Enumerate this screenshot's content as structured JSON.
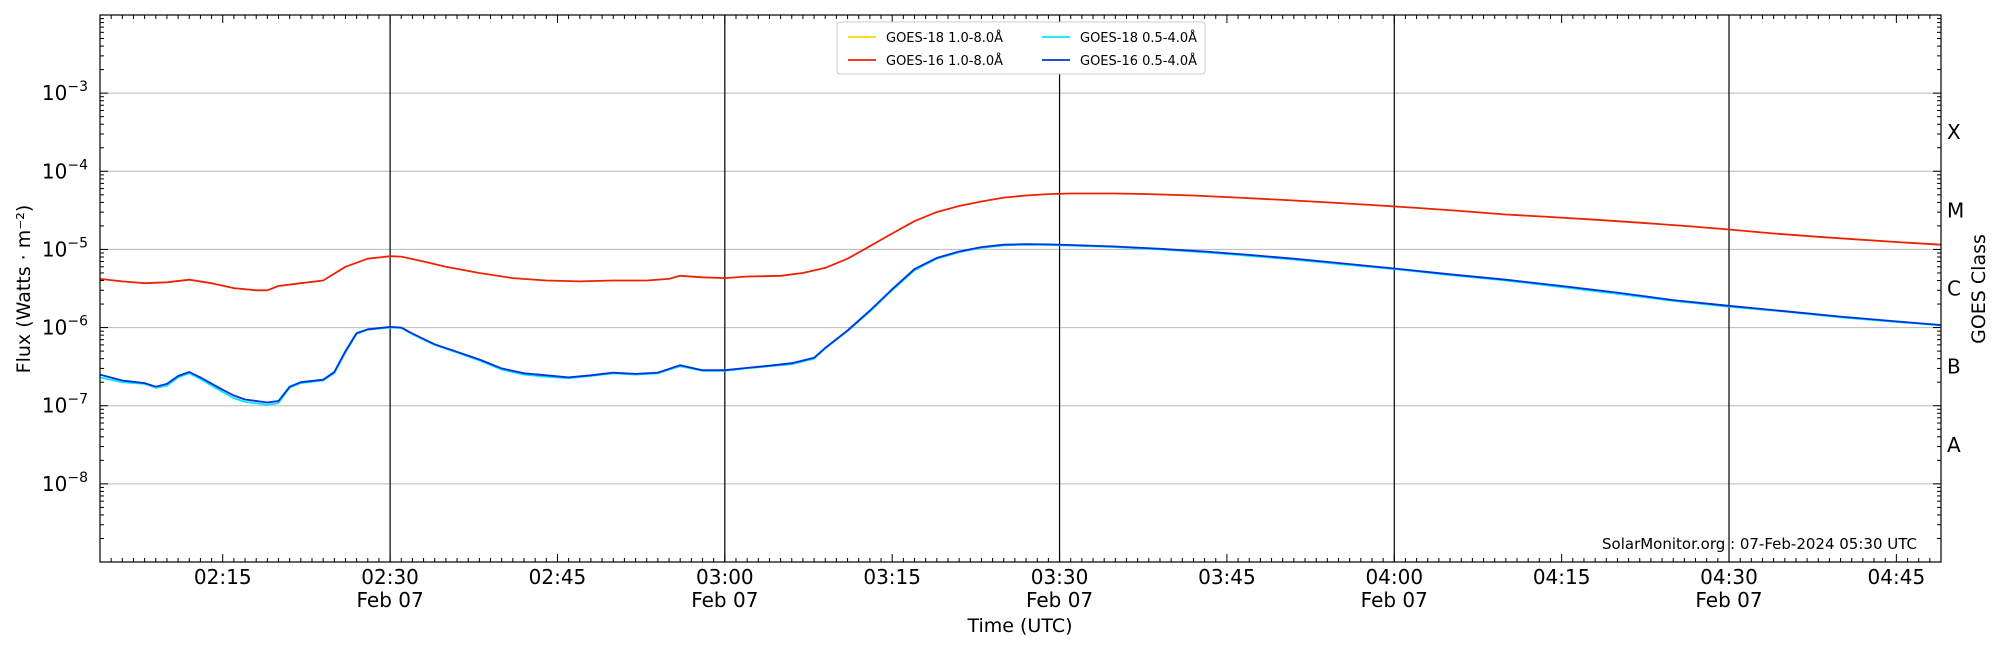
{
  "chart_data": {
    "type": "line",
    "ylabel": "Flux (Watts · m⁻²)",
    "xlabel": "Time (UTC)",
    "right_label": "GOES Class",
    "credit": "SolarMonitor.org : 07-Feb-2024 05:30 UTC",
    "y_scale": "log",
    "ylim": [
      1e-09,
      0.01
    ],
    "xlim": [
      "02:04",
      "04:49"
    ],
    "y_ticks": [
      {
        "value": 1e-08,
        "base": "10",
        "exp": "−8"
      },
      {
        "value": 1e-07,
        "base": "10",
        "exp": "−7"
      },
      {
        "value": 1e-06,
        "base": "10",
        "exp": "−6"
      },
      {
        "value": 1e-05,
        "base": "10",
        "exp": "−5"
      },
      {
        "value": 0.0001,
        "base": "10",
        "exp": "−4"
      },
      {
        "value": 0.001,
        "base": "10",
        "exp": "−3"
      }
    ],
    "x_ticks": [
      {
        "time": "02:15",
        "date": ""
      },
      {
        "time": "02:30",
        "date": "Feb 07"
      },
      {
        "time": "02:45",
        "date": ""
      },
      {
        "time": "03:00",
        "date": "Feb 07"
      },
      {
        "time": "03:15",
        "date": ""
      },
      {
        "time": "03:30",
        "date": "Feb 07"
      },
      {
        "time": "03:45",
        "date": ""
      },
      {
        "time": "04:00",
        "date": "Feb 07"
      },
      {
        "time": "04:15",
        "date": ""
      },
      {
        "time": "04:30",
        "date": "Feb 07"
      },
      {
        "time": "04:45",
        "date": ""
      }
    ],
    "vlines": [
      "02:30",
      "03:00",
      "03:30",
      "04:00",
      "04:30"
    ],
    "goes_classes": [
      {
        "label": "A",
        "value": 3.16e-08
      },
      {
        "label": "B",
        "value": 3.16e-07
      },
      {
        "label": "C",
        "value": 3.16e-06
      },
      {
        "label": "M",
        "value": 3.16e-05
      },
      {
        "label": "X",
        "value": 0.000316
      }
    ],
    "grid": true,
    "legend_position": "top-center",
    "series": [
      {
        "name": "GOES-18 1.0-8.0Å",
        "color": "#ffd700",
        "points": []
      },
      {
        "name": "GOES-16 1.0-8.0Å",
        "color": "#ee2200",
        "points": [
          [
            "02:04",
            4.2e-06
          ],
          [
            "02:06",
            3.9e-06
          ],
          [
            "02:08",
            3.7e-06
          ],
          [
            "02:10",
            3.8e-06
          ],
          [
            "02:12",
            4.1e-06
          ],
          [
            "02:14",
            3.7e-06
          ],
          [
            "02:16",
            3.2e-06
          ],
          [
            "02:18",
            3e-06
          ],
          [
            "02:19",
            3e-06
          ],
          [
            "02:20",
            3.4e-06
          ],
          [
            "02:22",
            3.7e-06
          ],
          [
            "02:24",
            4e-06
          ],
          [
            "02:26",
            6e-06
          ],
          [
            "02:28",
            7.6e-06
          ],
          [
            "02:30",
            8.2e-06
          ],
          [
            "02:31",
            8.1e-06
          ],
          [
            "02:33",
            7e-06
          ],
          [
            "02:35",
            6e-06
          ],
          [
            "02:38",
            5e-06
          ],
          [
            "02:41",
            4.3e-06
          ],
          [
            "02:44",
            4e-06
          ],
          [
            "02:47",
            3.9e-06
          ],
          [
            "02:50",
            4e-06
          ],
          [
            "02:53",
            4e-06
          ],
          [
            "02:55",
            4.2e-06
          ],
          [
            "02:56",
            4.6e-06
          ],
          [
            "02:58",
            4.4e-06
          ],
          [
            "03:00",
            4.3e-06
          ],
          [
            "03:02",
            4.5e-06
          ],
          [
            "03:05",
            4.6e-06
          ],
          [
            "03:07",
            5e-06
          ],
          [
            "03:09",
            5.8e-06
          ],
          [
            "03:11",
            7.6e-06
          ],
          [
            "03:13",
            1.1e-05
          ],
          [
            "03:15",
            1.6e-05
          ],
          [
            "03:17",
            2.3e-05
          ],
          [
            "03:19",
            3e-05
          ],
          [
            "03:21",
            3.6e-05
          ],
          [
            "03:23",
            4.1e-05
          ],
          [
            "03:25",
            4.6e-05
          ],
          [
            "03:27",
            4.9e-05
          ],
          [
            "03:29",
            5.1e-05
          ],
          [
            "03:31",
            5.2e-05
          ],
          [
            "03:33",
            5.2e-05
          ],
          [
            "03:35",
            5.2e-05
          ],
          [
            "03:38",
            5.1e-05
          ],
          [
            "03:42",
            4.9e-05
          ],
          [
            "03:46",
            4.6e-05
          ],
          [
            "03:50",
            4.3e-05
          ],
          [
            "03:54",
            4e-05
          ],
          [
            "03:58",
            3.7e-05
          ],
          [
            "04:02",
            3.4e-05
          ],
          [
            "04:06",
            3.1e-05
          ],
          [
            "04:10",
            2.8e-05
          ],
          [
            "04:14",
            2.6e-05
          ],
          [
            "04:18",
            2.4e-05
          ],
          [
            "04:22",
            2.2e-05
          ],
          [
            "04:26",
            2e-05
          ],
          [
            "04:30",
            1.8e-05
          ],
          [
            "04:34",
            1.6e-05
          ],
          [
            "04:38",
            1.45e-05
          ],
          [
            "04:42",
            1.33e-05
          ],
          [
            "04:46",
            1.22e-05
          ],
          [
            "04:49",
            1.15e-05
          ]
        ]
      },
      {
        "name": "GOES-18 0.5-4.0Å",
        "color": "#00e5ff",
        "points": [
          [
            "02:04",
            2.3e-07
          ],
          [
            "02:06",
            2e-07
          ],
          [
            "02:08",
            1.9e-07
          ],
          [
            "02:09",
            1.7e-07
          ],
          [
            "02:10",
            1.8e-07
          ],
          [
            "02:11",
            2.3e-07
          ],
          [
            "02:12",
            2.6e-07
          ],
          [
            "02:13",
            2.2e-07
          ],
          [
            "02:15",
            1.5e-07
          ],
          [
            "02:16",
            1.25e-07
          ],
          [
            "02:17",
            1.12e-07
          ],
          [
            "02:19",
            1.03e-07
          ],
          [
            "02:20",
            1.08e-07
          ],
          [
            "02:21",
            1.7e-07
          ],
          [
            "02:22",
            1.95e-07
          ],
          [
            "02:24",
            2.1e-07
          ],
          [
            "02:25",
            2.6e-07
          ],
          [
            "02:26",
            4.8e-07
          ],
          [
            "02:27",
            8.3e-07
          ],
          [
            "02:28",
            9.4e-07
          ],
          [
            "02:30",
            1e-06
          ],
          [
            "02:31",
            9.9e-07
          ],
          [
            "02:32",
            8.2e-07
          ],
          [
            "02:34",
            6e-07
          ],
          [
            "02:36",
            4.8e-07
          ],
          [
            "02:38",
            3.8e-07
          ],
          [
            "02:40",
            2.9e-07
          ],
          [
            "02:42",
            2.5e-07
          ],
          [
            "02:44",
            2.35e-07
          ],
          [
            "02:46",
            2.25e-07
          ],
          [
            "02:48",
            2.4e-07
          ],
          [
            "02:50",
            2.6e-07
          ],
          [
            "02:52",
            2.5e-07
          ],
          [
            "02:54",
            2.6e-07
          ],
          [
            "02:56",
            3.2e-07
          ],
          [
            "02:58",
            2.8e-07
          ],
          [
            "03:00",
            2.8e-07
          ],
          [
            "03:02",
            3e-07
          ],
          [
            "03:04",
            3.2e-07
          ],
          [
            "03:06",
            3.4e-07
          ],
          [
            "03:08",
            4e-07
          ],
          [
            "03:09",
            5.4e-07
          ],
          [
            "03:11",
            9e-07
          ],
          [
            "03:13",
            1.6e-06
          ],
          [
            "03:15",
            3e-06
          ],
          [
            "03:17",
            5.4e-06
          ],
          [
            "03:19",
            7.6e-06
          ],
          [
            "03:21",
            9.2e-06
          ],
          [
            "03:23",
            1.05e-05
          ],
          [
            "03:25",
            1.13e-05
          ],
          [
            "03:27",
            1.15e-05
          ],
          [
            "03:29",
            1.14e-05
          ],
          [
            "03:31",
            1.12e-05
          ],
          [
            "03:35",
            1.07e-05
          ],
          [
            "03:39",
            1e-05
          ],
          [
            "03:43",
            9.2e-06
          ],
          [
            "03:47",
            8.3e-06
          ],
          [
            "03:51",
            7.4e-06
          ],
          [
            "03:55",
            6.5e-06
          ],
          [
            "04:00",
            5.6e-06
          ],
          [
            "04:05",
            4.7e-06
          ],
          [
            "04:10",
            4e-06
          ],
          [
            "04:15",
            3.3e-06
          ],
          [
            "04:20",
            2.7e-06
          ],
          [
            "04:25",
            2.2e-06
          ],
          [
            "04:30",
            1.85e-06
          ],
          [
            "04:35",
            1.6e-06
          ],
          [
            "04:40",
            1.35e-06
          ],
          [
            "04:45",
            1.18e-06
          ],
          [
            "04:49",
            1.07e-06
          ]
        ]
      },
      {
        "name": "GOES-16 0.5-4.0Å",
        "color": "#0033dd",
        "points": [
          [
            "02:04",
            2.5e-07
          ],
          [
            "02:06",
            2.1e-07
          ],
          [
            "02:08",
            1.95e-07
          ],
          [
            "02:09",
            1.75e-07
          ],
          [
            "02:10",
            1.9e-07
          ],
          [
            "02:11",
            2.4e-07
          ],
          [
            "02:12",
            2.7e-07
          ],
          [
            "02:13",
            2.3e-07
          ],
          [
            "02:15",
            1.6e-07
          ],
          [
            "02:16",
            1.35e-07
          ],
          [
            "02:17",
            1.2e-07
          ],
          [
            "02:19",
            1.1e-07
          ],
          [
            "02:20",
            1.15e-07
          ],
          [
            "02:21",
            1.75e-07
          ],
          [
            "02:22",
            2e-07
          ],
          [
            "02:24",
            2.15e-07
          ],
          [
            "02:25",
            2.7e-07
          ],
          [
            "02:26",
            5e-07
          ],
          [
            "02:27",
            8.5e-07
          ],
          [
            "02:28",
            9.5e-07
          ],
          [
            "02:30",
            1.02e-06
          ],
          [
            "02:31",
            1e-06
          ],
          [
            "02:32",
            8.4e-07
          ],
          [
            "02:34",
            6.1e-07
          ],
          [
            "02:36",
            4.9e-07
          ],
          [
            "02:38",
            3.9e-07
          ],
          [
            "02:40",
            3e-07
          ],
          [
            "02:42",
            2.6e-07
          ],
          [
            "02:44",
            2.45e-07
          ],
          [
            "02:46",
            2.3e-07
          ],
          [
            "02:48",
            2.45e-07
          ],
          [
            "02:50",
            2.65e-07
          ],
          [
            "02:52",
            2.55e-07
          ],
          [
            "02:54",
            2.65e-07
          ],
          [
            "02:56",
            3.3e-07
          ],
          [
            "02:58",
            2.85e-07
          ],
          [
            "03:00",
            2.85e-07
          ],
          [
            "03:02",
            3.05e-07
          ],
          [
            "03:04",
            3.25e-07
          ],
          [
            "03:06",
            3.5e-07
          ],
          [
            "03:08",
            4.1e-07
          ],
          [
            "03:09",
            5.5e-07
          ],
          [
            "03:11",
            9.2e-07
          ],
          [
            "03:13",
            1.65e-06
          ],
          [
            "03:15",
            3.1e-06
          ],
          [
            "03:17",
            5.6e-06
          ],
          [
            "03:19",
            7.8e-06
          ],
          [
            "03:21",
            9.4e-06
          ],
          [
            "03:23",
            1.07e-05
          ],
          [
            "03:25",
            1.15e-05
          ],
          [
            "03:27",
            1.17e-05
          ],
          [
            "03:29",
            1.16e-05
          ],
          [
            "03:31",
            1.14e-05
          ],
          [
            "03:35",
            1.09e-05
          ],
          [
            "03:39",
            1.02e-05
          ],
          [
            "03:43",
            9.4e-06
          ],
          [
            "03:47",
            8.5e-06
          ],
          [
            "03:51",
            7.6e-06
          ],
          [
            "03:55",
            6.7e-06
          ],
          [
            "04:00",
            5.7e-06
          ],
          [
            "04:05",
            4.8e-06
          ],
          [
            "04:10",
            4.1e-06
          ],
          [
            "04:15",
            3.4e-06
          ],
          [
            "04:20",
            2.8e-06
          ],
          [
            "04:25",
            2.25e-06
          ],
          [
            "04:30",
            1.9e-06
          ],
          [
            "04:35",
            1.62e-06
          ],
          [
            "04:40",
            1.38e-06
          ],
          [
            "04:45",
            1.2e-06
          ],
          [
            "04:49",
            1.08e-06
          ]
        ]
      }
    ],
    "legend_order": [
      0,
      2,
      1,
      3
    ]
  }
}
